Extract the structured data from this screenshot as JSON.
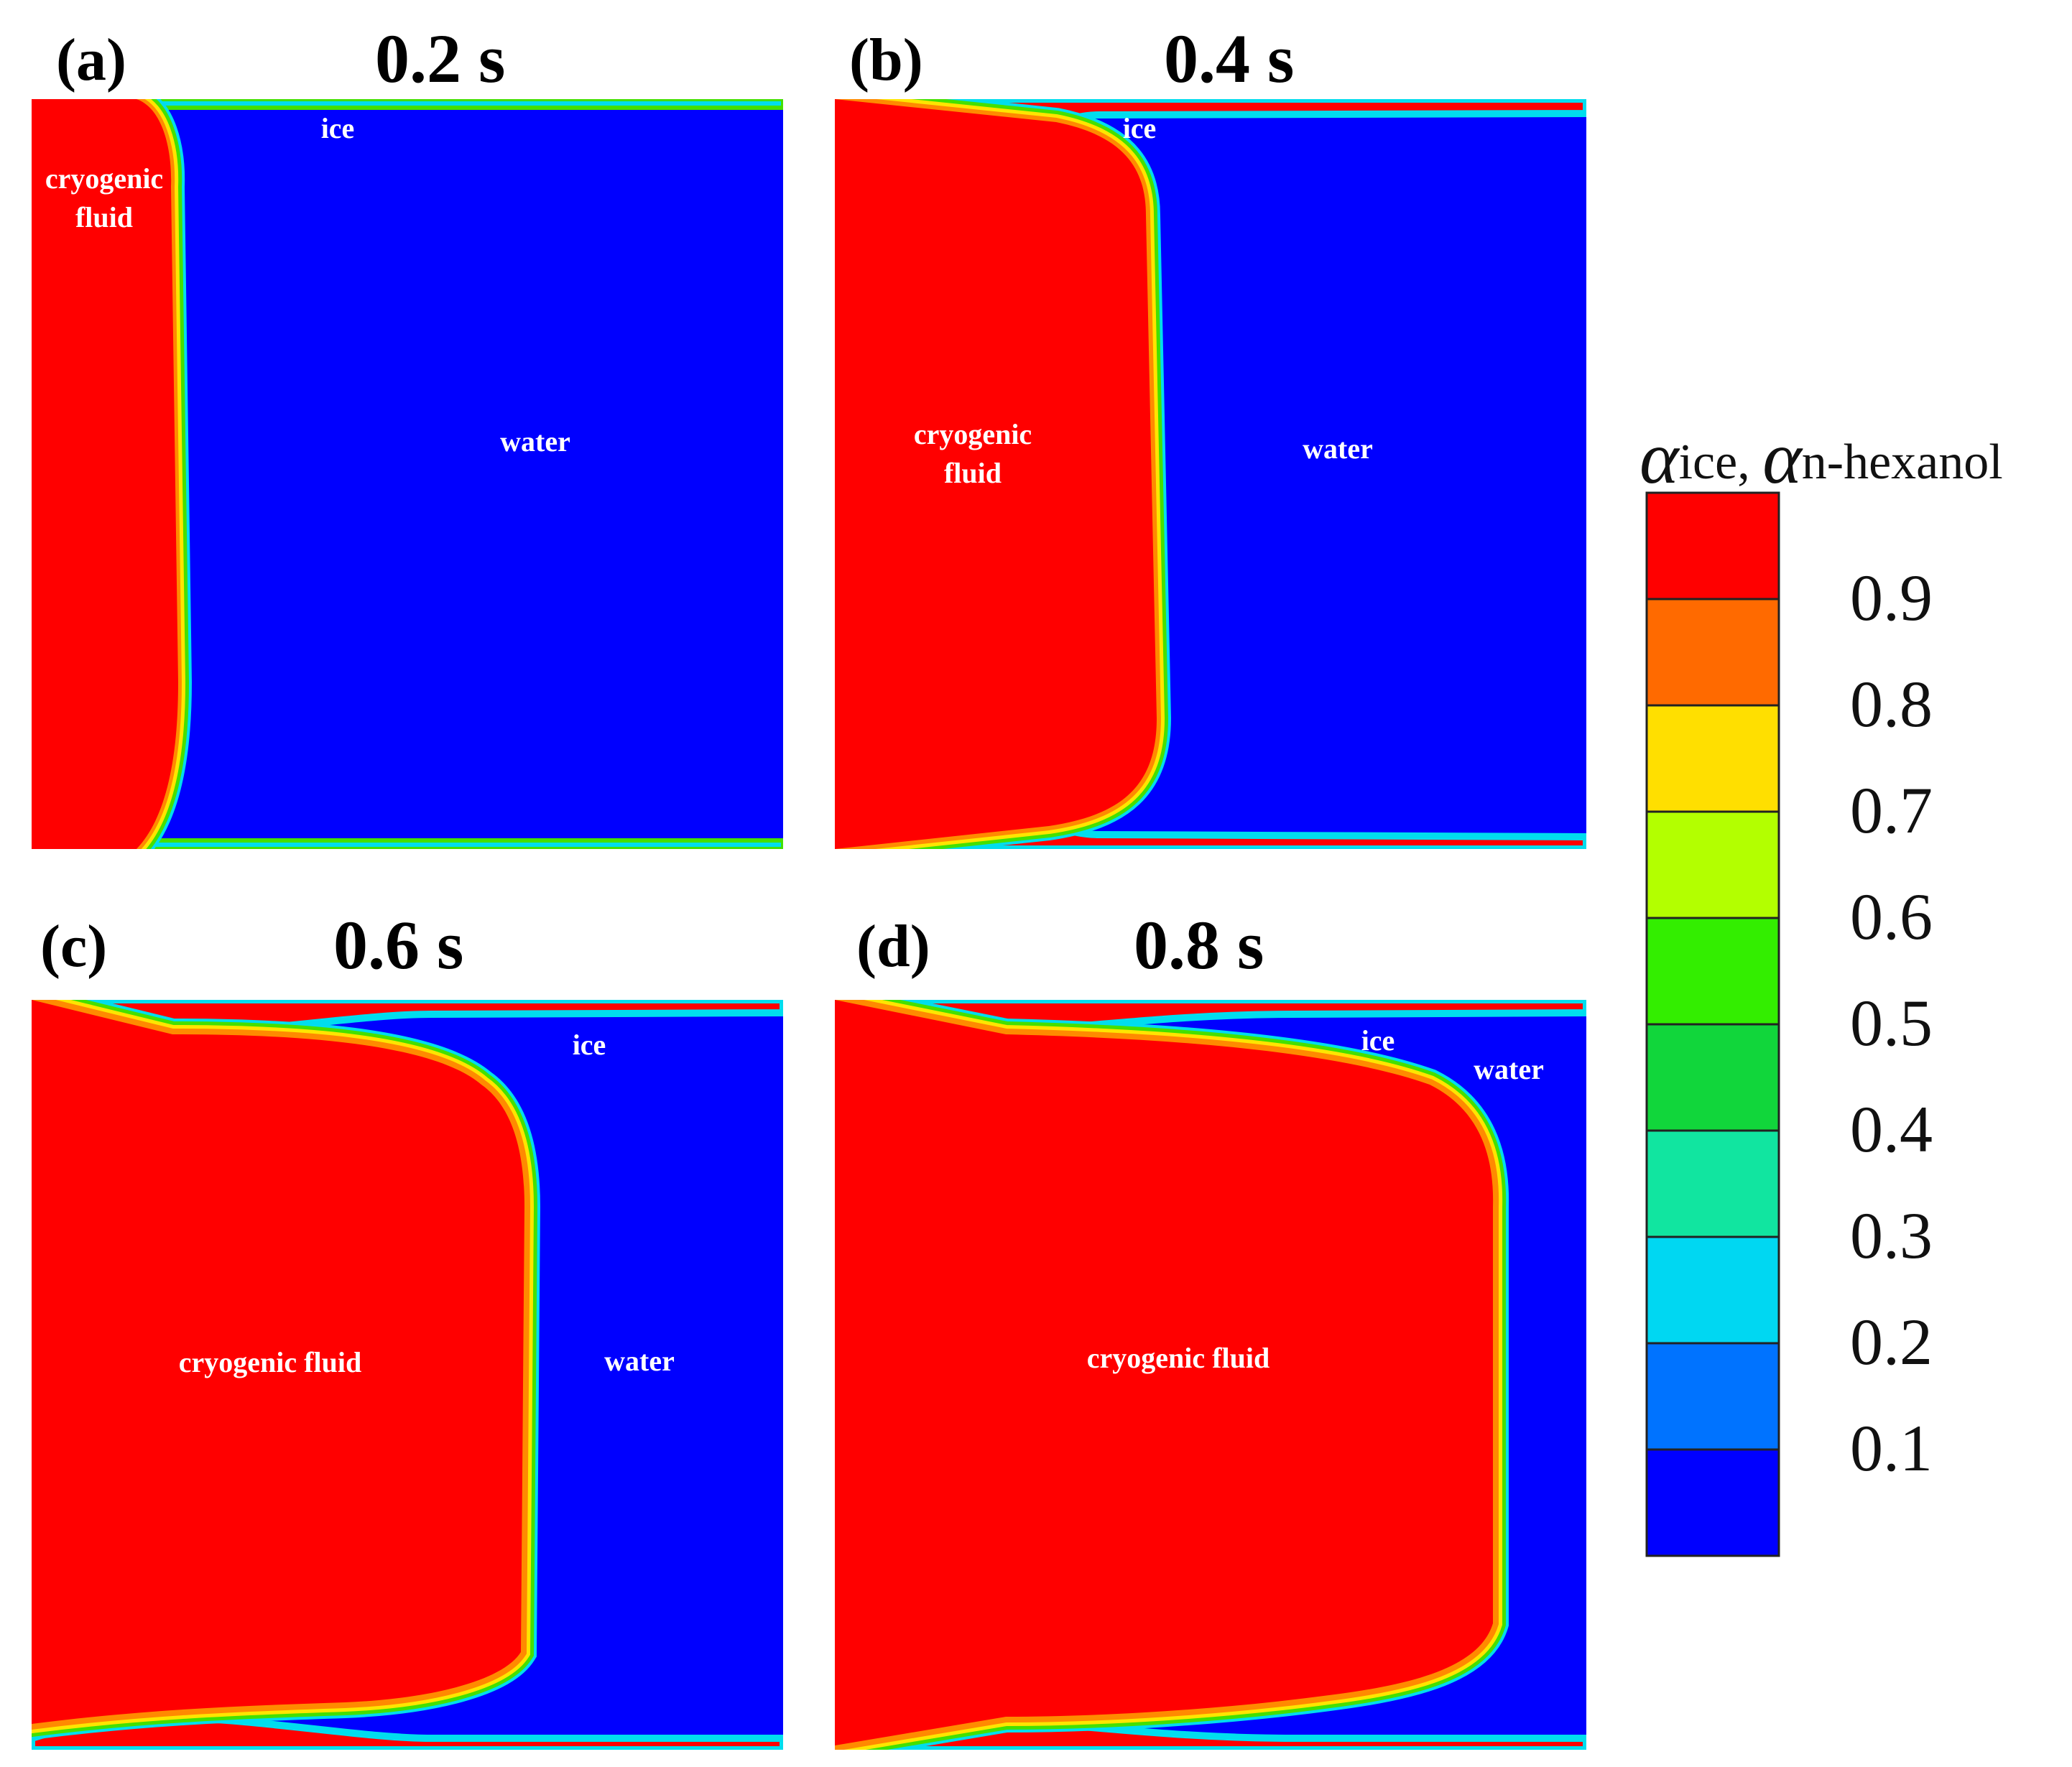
{
  "panels": [
    {
      "label": "(a)",
      "time": "0.2 s",
      "annotations": {
        "ice": "ice",
        "cryo1": "cryogenic",
        "cryo2": "fluid",
        "water": "water"
      }
    },
    {
      "label": "(b)",
      "time": "0.4 s",
      "annotations": {
        "ice": "ice",
        "cryo1": "cryogenic",
        "cryo2": "fluid",
        "water": "water"
      }
    },
    {
      "label": "(c)",
      "time": "0.6 s",
      "annotations": {
        "ice": "ice",
        "cryo": "cryogenic fluid",
        "water": "water"
      }
    },
    {
      "label": "(d)",
      "time": "0.8 s",
      "annotations": {
        "ice": "ice",
        "cryo": "cryogenic fluid",
        "water": "water"
      }
    }
  ],
  "colorbar": {
    "title_symbol": "α",
    "title_sub1": "ice",
    "title_sep": ", ",
    "title_sub2": "n-hexanol",
    "ticks": [
      "0.9",
      "0.8",
      "0.7",
      "0.6",
      "0.5",
      "0.4",
      "0.3",
      "0.2",
      "0.1"
    ],
    "colors": [
      "#ff0000",
      "#ff6a00",
      "#ffdf00",
      "#b3ff00",
      "#33ee00",
      "#11d63b",
      "#11e5a0",
      "#00d7f2",
      "#0073ff",
      "#0000ff"
    ]
  },
  "colors": {
    "water": "#0000ff",
    "cryogenic_fluid": "#ff0000",
    "band_orange": "#ff8a00",
    "band_yellow": "#ffe500",
    "band_green": "#44e000",
    "band_cyan": "#00ddee"
  }
}
